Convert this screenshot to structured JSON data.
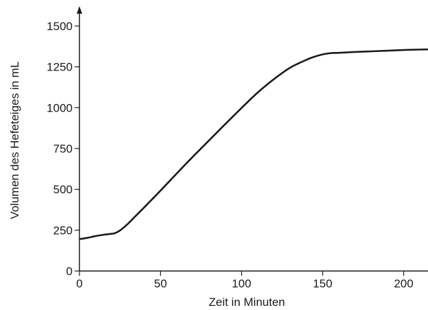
{
  "chart_data": {
    "type": "line",
    "title": "",
    "xlabel": "Zeit in Minuten",
    "ylabel": "Volumen des Hefeteiges in mL",
    "xlim": [
      0,
      215
    ],
    "ylim": [
      0,
      1500
    ],
    "x_ticks": [
      0,
      50,
      100,
      150,
      200
    ],
    "y_ticks": [
      0,
      250,
      500,
      750,
      1000,
      1250,
      1500
    ],
    "x_tick_labels": [
      "0",
      "50",
      "100",
      "150",
      "200"
    ],
    "y_tick_labels": [
      "0",
      "250",
      "500",
      "750",
      "1000",
      "1250",
      "1500"
    ],
    "grid": false,
    "legend": "none",
    "series": [
      {
        "color": "#1a1a1a",
        "x": [
          0,
          5,
          10,
          15,
          20,
          22,
          25,
          30,
          35,
          40,
          50,
          60,
          70,
          80,
          90,
          100,
          110,
          120,
          130,
          140,
          145,
          150,
          155,
          160,
          170,
          180,
          190,
          200,
          210,
          215
        ],
        "y": [
          195,
          203,
          214,
          222,
          228,
          232,
          248,
          290,
          340,
          390,
          492,
          597,
          700,
          800,
          900,
          998,
          1093,
          1175,
          1245,
          1293,
          1312,
          1326,
          1334,
          1336,
          1341,
          1345,
          1349,
          1353,
          1356,
          1357
        ]
      }
    ]
  }
}
